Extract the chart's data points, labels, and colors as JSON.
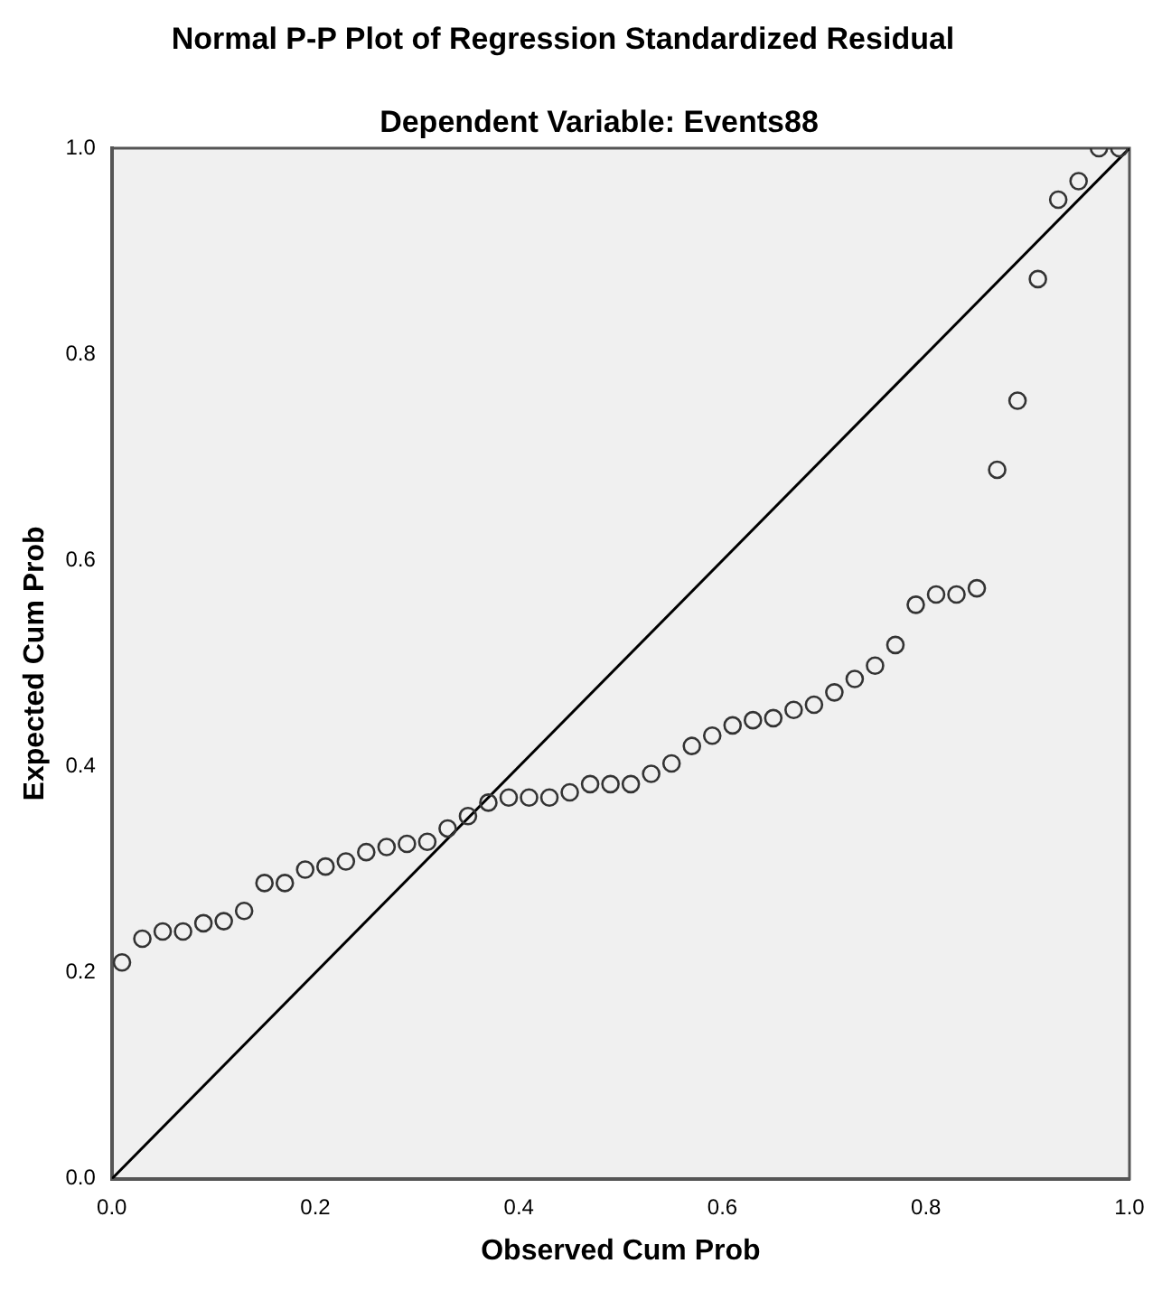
{
  "chart_data": {
    "type": "scatter",
    "title": "Normal P-P Plot of Regression Standardized Residual",
    "subtitle": "Dependent Variable: Events88",
    "xlabel": "Observed Cum Prob",
    "ylabel": "Expected Cum Prob",
    "xlim": [
      0,
      1
    ],
    "ylim": [
      0,
      1
    ],
    "xticks": [
      {
        "value": 0,
        "label": "0.0"
      },
      {
        "value": 0.2,
        "label": "0.2"
      },
      {
        "value": 0.4,
        "label": "0.4"
      },
      {
        "value": 0.6,
        "label": "0.6"
      },
      {
        "value": 0.8,
        "label": "0.8"
      },
      {
        "value": 1,
        "label": "1.0"
      }
    ],
    "yticks": [
      {
        "value": 0,
        "label": "0.0"
      },
      {
        "value": 0.2,
        "label": "0.2"
      },
      {
        "value": 0.4,
        "label": "0.4"
      },
      {
        "value": 0.6,
        "label": "0.6"
      },
      {
        "value": 0.8,
        "label": "0.8"
      },
      {
        "value": 1,
        "label": "1.0"
      }
    ],
    "grid": false,
    "legend": false,
    "marker": "circle",
    "series": [
      {
        "color": "#333333",
        "x": [
          0.01,
          0.03,
          0.05,
          0.07,
          0.09,
          0.11,
          0.13,
          0.15,
          0.17,
          0.19,
          0.21,
          0.23,
          0.25,
          0.27,
          0.29,
          0.31,
          0.33,
          0.35,
          0.37,
          0.39,
          0.41,
          0.43,
          0.45,
          0.47,
          0.49,
          0.51,
          0.53,
          0.55,
          0.57,
          0.59,
          0.61,
          0.63,
          0.65,
          0.67,
          0.69,
          0.71,
          0.73,
          0.75,
          0.77,
          0.79,
          0.81,
          0.83,
          0.85,
          0.87,
          0.89,
          0.91,
          0.93,
          0.95,
          0.97,
          0.99
        ],
        "values": [
          0.21,
          0.233,
          0.24,
          0.24,
          0.248,
          0.25,
          0.26,
          0.287,
          0.287,
          0.3,
          0.303,
          0.308,
          0.317,
          0.322,
          0.325,
          0.327,
          0.34,
          0.352,
          0.365,
          0.37,
          0.37,
          0.37,
          0.375,
          0.383,
          0.383,
          0.383,
          0.393,
          0.403,
          0.42,
          0.43,
          0.44,
          0.445,
          0.447,
          0.455,
          0.46,
          0.472,
          0.485,
          0.498,
          0.518,
          0.557,
          0.567,
          0.567,
          0.573,
          0.688,
          0.755,
          0.873,
          0.95,
          0.968,
          1.0,
          1.0
        ]
      },
      {
        "type": "line",
        "color": "#000000",
        "x": [
          0,
          1
        ],
        "values": [
          0,
          1
        ],
        "marker": "none"
      }
    ]
  }
}
